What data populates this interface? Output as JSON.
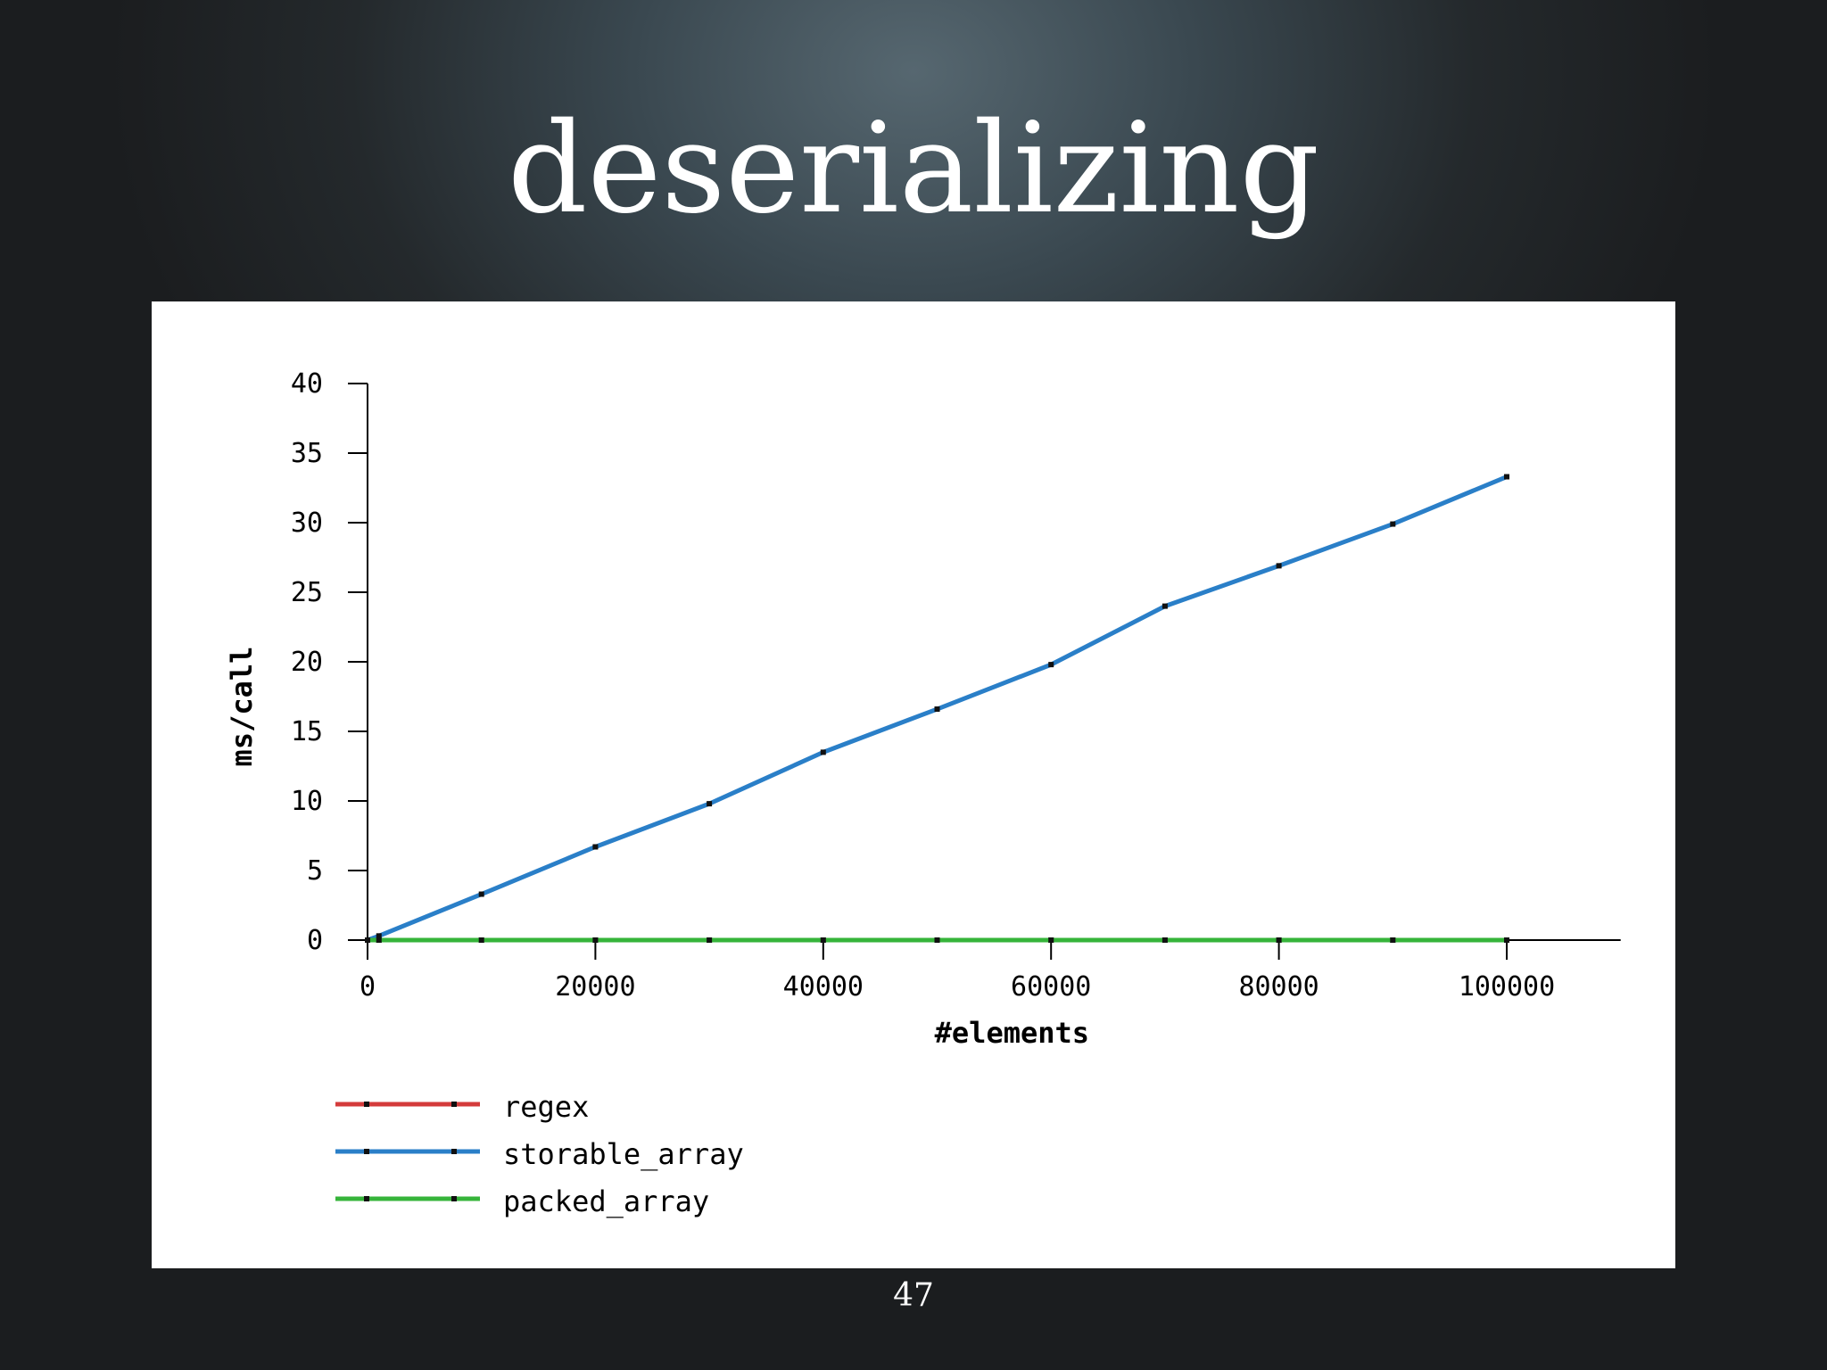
{
  "slide": {
    "title": "deserializing",
    "page_number": "47"
  },
  "chart_data": {
    "type": "line",
    "title": "",
    "xlabel": "#elements",
    "ylabel": "ms/call",
    "xlim": [
      0,
      110000
    ],
    "ylim": [
      0,
      40
    ],
    "x_ticks": [
      "0",
      "20000",
      "40000",
      "60000",
      "80000",
      "100000"
    ],
    "y_ticks": [
      "0",
      "5",
      "10",
      "15",
      "20",
      "25",
      "30",
      "35",
      "40"
    ],
    "legend_position": "bottom-left",
    "grid": false,
    "series": [
      {
        "name": "regex",
        "color": "#d43b3b",
        "x": [
          0,
          1000,
          10000,
          20000,
          30000,
          40000,
          50000,
          60000,
          70000,
          80000,
          90000,
          100000
        ],
        "y": [
          0,
          0,
          0,
          0,
          0,
          0,
          0,
          0,
          0,
          0,
          0,
          0
        ]
      },
      {
        "name": "storable_array",
        "color": "#2a7fc8",
        "x": [
          0,
          1000,
          10000,
          20000,
          30000,
          40000,
          50000,
          60000,
          70000,
          80000,
          90000,
          100000
        ],
        "y": [
          0,
          0.3,
          3.3,
          6.7,
          9.8,
          13.5,
          16.6,
          19.8,
          24.0,
          26.9,
          29.9,
          33.3
        ]
      },
      {
        "name": "packed_array",
        "color": "#36b43a",
        "x": [
          0,
          1000,
          10000,
          20000,
          30000,
          40000,
          50000,
          60000,
          70000,
          80000,
          90000,
          100000
        ],
        "y": [
          0,
          0,
          0,
          0,
          0,
          0,
          0,
          0,
          0,
          0,
          0,
          0
        ]
      }
    ]
  }
}
